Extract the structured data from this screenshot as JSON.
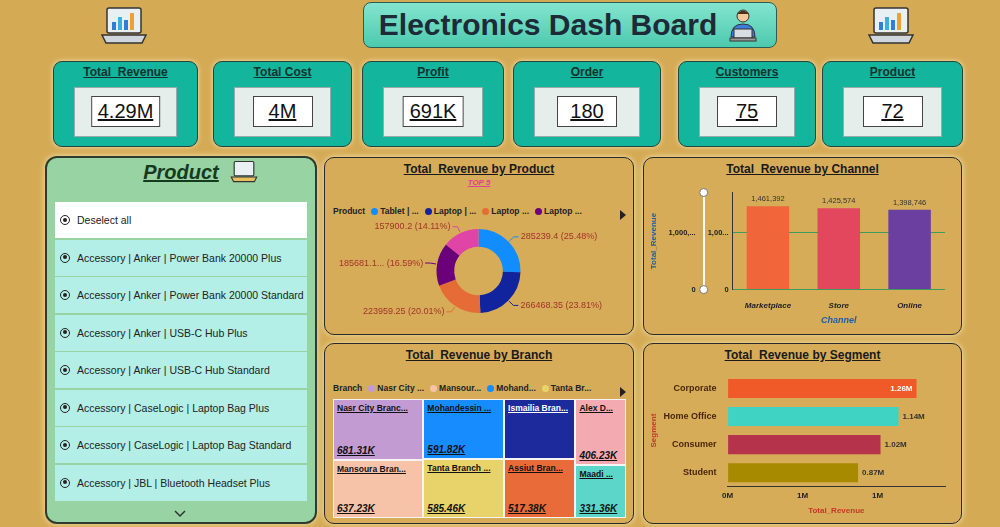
{
  "header": {
    "title": "Electronics Dash Board"
  },
  "kpis": [
    {
      "label": "Total_Revenue",
      "value": "4.29M"
    },
    {
      "label": "Total Cost",
      "value": "4M"
    },
    {
      "label": "Profit",
      "value": "691K"
    },
    {
      "label": "Order",
      "value": "180"
    },
    {
      "label": "Customers",
      "value": "75"
    },
    {
      "label": "Product",
      "value": "72"
    }
  ],
  "slicer": {
    "title": "Product",
    "items": [
      "Deselect all",
      "Accessory | Anker | Power Bank 20000 Plus",
      "Accessory | Anker | Power Bank 20000 Standard",
      "Accessory | Anker | USB-C Hub Plus",
      "Accessory | Anker | USB-C Hub Standard",
      "Accessory | CaseLogic | Laptop Bag Plus",
      "Accessory | CaseLogic | Laptop Bag Standard",
      "Accessory | JBL | Bluetooth Headset Plus"
    ]
  },
  "chart_data": [
    {
      "type": "doughnut",
      "title": "Total_Revenue by Product",
      "subtitle": "TOP 5",
      "legend_title": "Product",
      "legend": "top",
      "categories": [
        "Tablet | ...",
        "Laptop | ...",
        "Laptop ...",
        "Laptop ...",
        null
      ],
      "values": [
        285239.4,
        266468.35,
        223959.25,
        185681.1,
        157900.2
      ],
      "value_labels": [
        "285239.4 (25.48%)",
        "266468.35 (23.81%)",
        "223959.25 (20.01%)",
        "185681.1... (16.59%)",
        "157900.2 (14.11%)"
      ],
      "colors": [
        "#118dff",
        "#12239e",
        "#e66c37",
        "#6b007b",
        "#e044a7"
      ],
      "data_labels": true
    },
    {
      "type": "bar",
      "title": "Total_Revenue by Channel",
      "x_label": "Channel",
      "y_label": "Total_Revenue",
      "categories": [
        "Marketplace",
        "Store",
        "Online"
      ],
      "values": [
        1461392,
        1425574,
        1398746
      ],
      "value_labels": [
        "1,461,392",
        "1,425,574",
        "1,398,746"
      ],
      "colors": [
        "#f1653a",
        "#e2475e",
        "#6b3fa0"
      ],
      "data_labels": true,
      "ylim": [
        0,
        1700000
      ],
      "yticks": [
        0,
        {
          "value": 1000000,
          "label": "1,00..."
        }
      ],
      "y2lim": [
        0,
        1700000
      ],
      "y2ticks": [
        0,
        {
          "value": 1000000,
          "label": "1,000,..."
        }
      ],
      "grid": true
    },
    {
      "type": "treemap",
      "title": "Total_Revenue by Branch",
      "legend_title": "Branch",
      "legend": "top",
      "legend_labels": [
        "Nasr City ...",
        "Mansour...",
        "Mohand...",
        "Tanta Br..."
      ],
      "categories": [
        "Nasr City Branc...",
        "Mansoura Bran...",
        "Mohandessin ...",
        "Tanta Branch ...",
        "Ismailia Bran...",
        "Assiut Bran...",
        "Alex D...",
        "Maadi ..."
      ],
      "values": [
        681.31,
        637.23,
        591.82,
        585.46,
        524,
        517.38,
        406.23,
        331.36
      ],
      "value_labels": [
        "681.31K",
        "637.23K",
        "591.82K",
        "585.46K",
        null,
        "517.38K",
        "406.23K",
        "331.36K"
      ],
      "colors": [
        "#c39bd3",
        "#f6c3a8",
        "#168cff",
        "#e8d36a",
        "#1c2a9c",
        "#ea6b3a",
        "#f3aab0",
        "#5cd6c8"
      ],
      "data_labels": true
    },
    {
      "type": "bar",
      "orientation": "horizontal",
      "title": "Total_Revenue by Segment",
      "x_label": "Total_Revenue",
      "y_label": "Segment",
      "categories": [
        "Corporate",
        "Home Office",
        "Consumer",
        "Student"
      ],
      "values": [
        1.26,
        1.14,
        1.02,
        0.87
      ],
      "value_labels": [
        "1.26M",
        "1.14M",
        "1.02M",
        "0.87M"
      ],
      "colors": [
        "#f05a28",
        "#3fd3c3",
        "#b5344c",
        "#a88a00"
      ],
      "data_labels": true,
      "xlim": [
        0,
        1.45
      ],
      "xticks": [
        {
          "value": 0,
          "label": "0M"
        },
        {
          "value": 0.5,
          "label": "1M"
        },
        {
          "value": 1,
          "label": "1M"
        }
      ],
      "grid": false
    }
  ]
}
